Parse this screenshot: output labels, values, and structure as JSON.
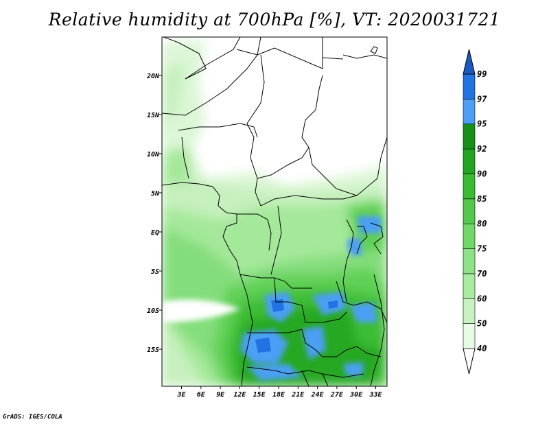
{
  "title": "Relative humidity at 700hPa [%], VT: 2020031721",
  "credit": "GrADS: IGES/COLA",
  "map": {
    "lat_labels": [
      "20N",
      "15N",
      "10N",
      "5N",
      "EQ",
      "5S",
      "10S",
      "15S"
    ],
    "lon_labels": [
      "3E",
      "6E",
      "9E",
      "12E",
      "15E",
      "18E",
      "21E",
      "24E",
      "27E",
      "30E",
      "33E"
    ]
  },
  "colorbar": {
    "levels": [
      "40",
      "50",
      "60",
      "70",
      "75",
      "80",
      "85",
      "90",
      "92",
      "95",
      "97",
      "99"
    ],
    "colors": [
      "#ffffff",
      "#e8fbe4",
      "#c8f2c0",
      "#a9eca0",
      "#8ee287",
      "#6fd866",
      "#52c94a",
      "#3bbb33",
      "#22a520",
      "#17901a",
      "#4c9ff4",
      "#2172e3",
      "#1a59c2"
    ]
  }
}
